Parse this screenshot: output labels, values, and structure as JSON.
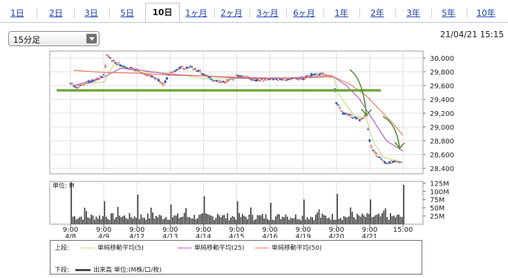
{
  "tabs": [
    "1日",
    "2日",
    "3日",
    "5日",
    "10日",
    "1ヶ月",
    "2ヶ月",
    "3ヶ月",
    "6ヶ月",
    "1年",
    "2年",
    "3年",
    "5年",
    "10年"
  ],
  "active_tab": "10日",
  "interval_select": "15分足",
  "datetime": "21/04/21 15:15",
  "chart_data": [
    {
      "type": "candlestick",
      "y_ticks": [
        "30,000",
        "29,800",
        "29,600",
        "29,400",
        "29,200",
        "29,000",
        "28,800",
        "28,600",
        "28,400"
      ],
      "ylim": [
        28320,
        30100
      ],
      "x_labels": [
        {
          "time": "9:00",
          "date": "4/8"
        },
        {
          "time": "9:00",
          "date": "4/9"
        },
        {
          "time": "9:00",
          "date": "4/12"
        },
        {
          "time": "9:00",
          "date": "4/13"
        },
        {
          "time": "9:00",
          "date": "4/14"
        },
        {
          "time": "9:00",
          "date": "4/15"
        },
        {
          "time": "9:00",
          "date": "4/16"
        },
        {
          "time": "9:00",
          "date": "4/19"
        },
        {
          "time": "9:00",
          "date": "4/20"
        },
        {
          "time": "9:00",
          "date": "4/21"
        },
        {
          "time": "15:00",
          "date": ""
        }
      ],
      "price_path": [
        [
          0,
          29620
        ],
        [
          0.2,
          29580
        ],
        [
          0.5,
          29650
        ],
        [
          0.8,
          29690
        ],
        [
          1.0,
          29750
        ],
        [
          1.05,
          29880
        ],
        [
          1.1,
          30050
        ],
        [
          1.3,
          29950
        ],
        [
          1.5,
          29900
        ],
        [
          1.7,
          29860
        ],
        [
          2.0,
          29820
        ],
        [
          2.3,
          29760
        ],
        [
          2.6,
          29700
        ],
        [
          2.8,
          29620
        ],
        [
          3.0,
          29780
        ],
        [
          3.3,
          29860
        ],
        [
          3.6,
          29870
        ],
        [
          3.9,
          29800
        ],
        [
          4.0,
          29760
        ],
        [
          4.3,
          29680
        ],
        [
          4.6,
          29650
        ],
        [
          4.9,
          29700
        ],
        [
          5.0,
          29740
        ],
        [
          5.3,
          29720
        ],
        [
          5.6,
          29680
        ],
        [
          5.9,
          29690
        ],
        [
          6.0,
          29700
        ],
        [
          6.3,
          29690
        ],
        [
          6.6,
          29700
        ],
        [
          6.9,
          29710
        ],
        [
          7.0,
          29700
        ],
        [
          7.3,
          29770
        ],
        [
          7.6,
          29760
        ],
        [
          7.9,
          29720
        ],
        [
          8.0,
          29350
        ],
        [
          8.2,
          29200
        ],
        [
          8.5,
          29150
        ],
        [
          8.7,
          29100
        ],
        [
          8.9,
          29170
        ],
        [
          9.0,
          28800
        ],
        [
          9.1,
          28650
        ],
        [
          9.3,
          28550
        ],
        [
          9.5,
          28460
        ],
        [
          9.7,
          28500
        ],
        [
          9.85,
          28510
        ],
        [
          10.0,
          28490
        ]
      ],
      "series": [
        {
          "name": "単純移動平均(5)",
          "color": "#c8d88a",
          "values": [
            [
              0,
              29600
            ],
            [
              1,
              29650
            ],
            [
              1.3,
              29900
            ],
            [
              2,
              29800
            ],
            [
              3,
              29780
            ],
            [
              4,
              29700
            ],
            [
              5,
              29700
            ],
            [
              6,
              29700
            ],
            [
              7,
              29720
            ],
            [
              7.9,
              29740
            ],
            [
              8.1,
              29450
            ],
            [
              8.5,
              29180
            ],
            [
              8.9,
              29120
            ],
            [
              9.1,
              28800
            ],
            [
              9.4,
              28560
            ],
            [
              10,
              28490
            ]
          ]
        },
        {
          "name": "単純移動平均(25)",
          "color": "#b05ad0",
          "values": [
            [
              0.1,
              29600
            ],
            [
              1,
              29720
            ],
            [
              1.5,
              29850
            ],
            [
              2,
              29830
            ],
            [
              3,
              29760
            ],
            [
              4,
              29740
            ],
            [
              5,
              29710
            ],
            [
              6,
              29700
            ],
            [
              7,
              29720
            ],
            [
              7.9,
              29730
            ],
            [
              8.3,
              29600
            ],
            [
              8.7,
              29400
            ],
            [
              9.1,
              29100
            ],
            [
              9.5,
              28800
            ],
            [
              10,
              28650
            ]
          ]
        },
        {
          "name": "単純移動平均(50)",
          "color": "#e8785a",
          "values": [
            [
              0.1,
              29820
            ],
            [
              1,
              29790
            ],
            [
              2,
              29780
            ],
            [
              3,
              29750
            ],
            [
              4,
              29740
            ],
            [
              5,
              29720
            ],
            [
              6,
              29710
            ],
            [
              7,
              29710
            ],
            [
              7.9,
              29730
            ],
            [
              8.4,
              29620
            ],
            [
              8.9,
              29450
            ],
            [
              9.3,
              29250
            ],
            [
              9.7,
              29050
            ],
            [
              10,
              28880
            ]
          ]
        }
      ],
      "support_level": 29530,
      "arrows": [
        [
          [
            8.4,
            29830
          ],
          [
            8.9,
            29170
          ]
        ],
        [
          [
            9.4,
            29150
          ],
          [
            9.9,
            28690
          ]
        ]
      ]
    },
    {
      "type": "bar",
      "label": "単位: M",
      "y_ticks": [
        "125M",
        "100M",
        "75M",
        "50M",
        "25M"
      ],
      "ylim": [
        0,
        130
      ],
      "day_spikes": [
        55,
        128,
        70,
        90,
        60,
        85,
        70,
        65,
        75,
        92,
        75,
        120
      ]
    }
  ],
  "legend": {
    "upper_label": "上段:",
    "lower_label": "下段:",
    "items": [
      {
        "name": "単純移動平均(5)",
        "color": "#c8d88a"
      },
      {
        "name": "単純移動平均(25)",
        "color": "#b05ad0"
      },
      {
        "name": "単純移動平均(50)",
        "color": "#e8785a"
      }
    ],
    "volume_item": {
      "name": "出来高 単位:(M株/口/枚)",
      "color": "#444444"
    }
  }
}
